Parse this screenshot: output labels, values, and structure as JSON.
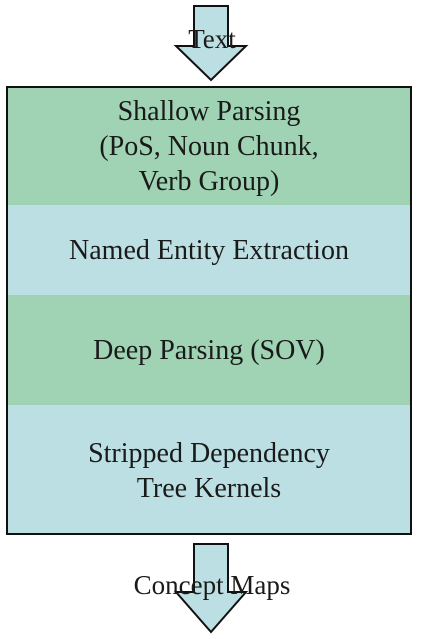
{
  "diagram": {
    "input": {
      "label": "Text"
    },
    "output": {
      "label": "Concept Maps"
    },
    "stages": [
      {
        "lines": [
          "Shallow Parsing",
          "(PoS, Noun Chunk,",
          "Verb Group)"
        ],
        "color": "#9fd3b4"
      },
      {
        "lines": [
          "Named Entity Extraction"
        ],
        "color": "#bcdfe4"
      },
      {
        "lines": [
          "Deep Parsing (SOV)"
        ],
        "color": "#9fd3b4"
      },
      {
        "lines": [
          "Stripped Dependency",
          "Tree Kernels"
        ],
        "color": "#bcdfe4"
      }
    ],
    "colors": {
      "arrow_fill": "#bcdfe4",
      "arrow_stroke": "#111111",
      "border": "#111111"
    }
  }
}
